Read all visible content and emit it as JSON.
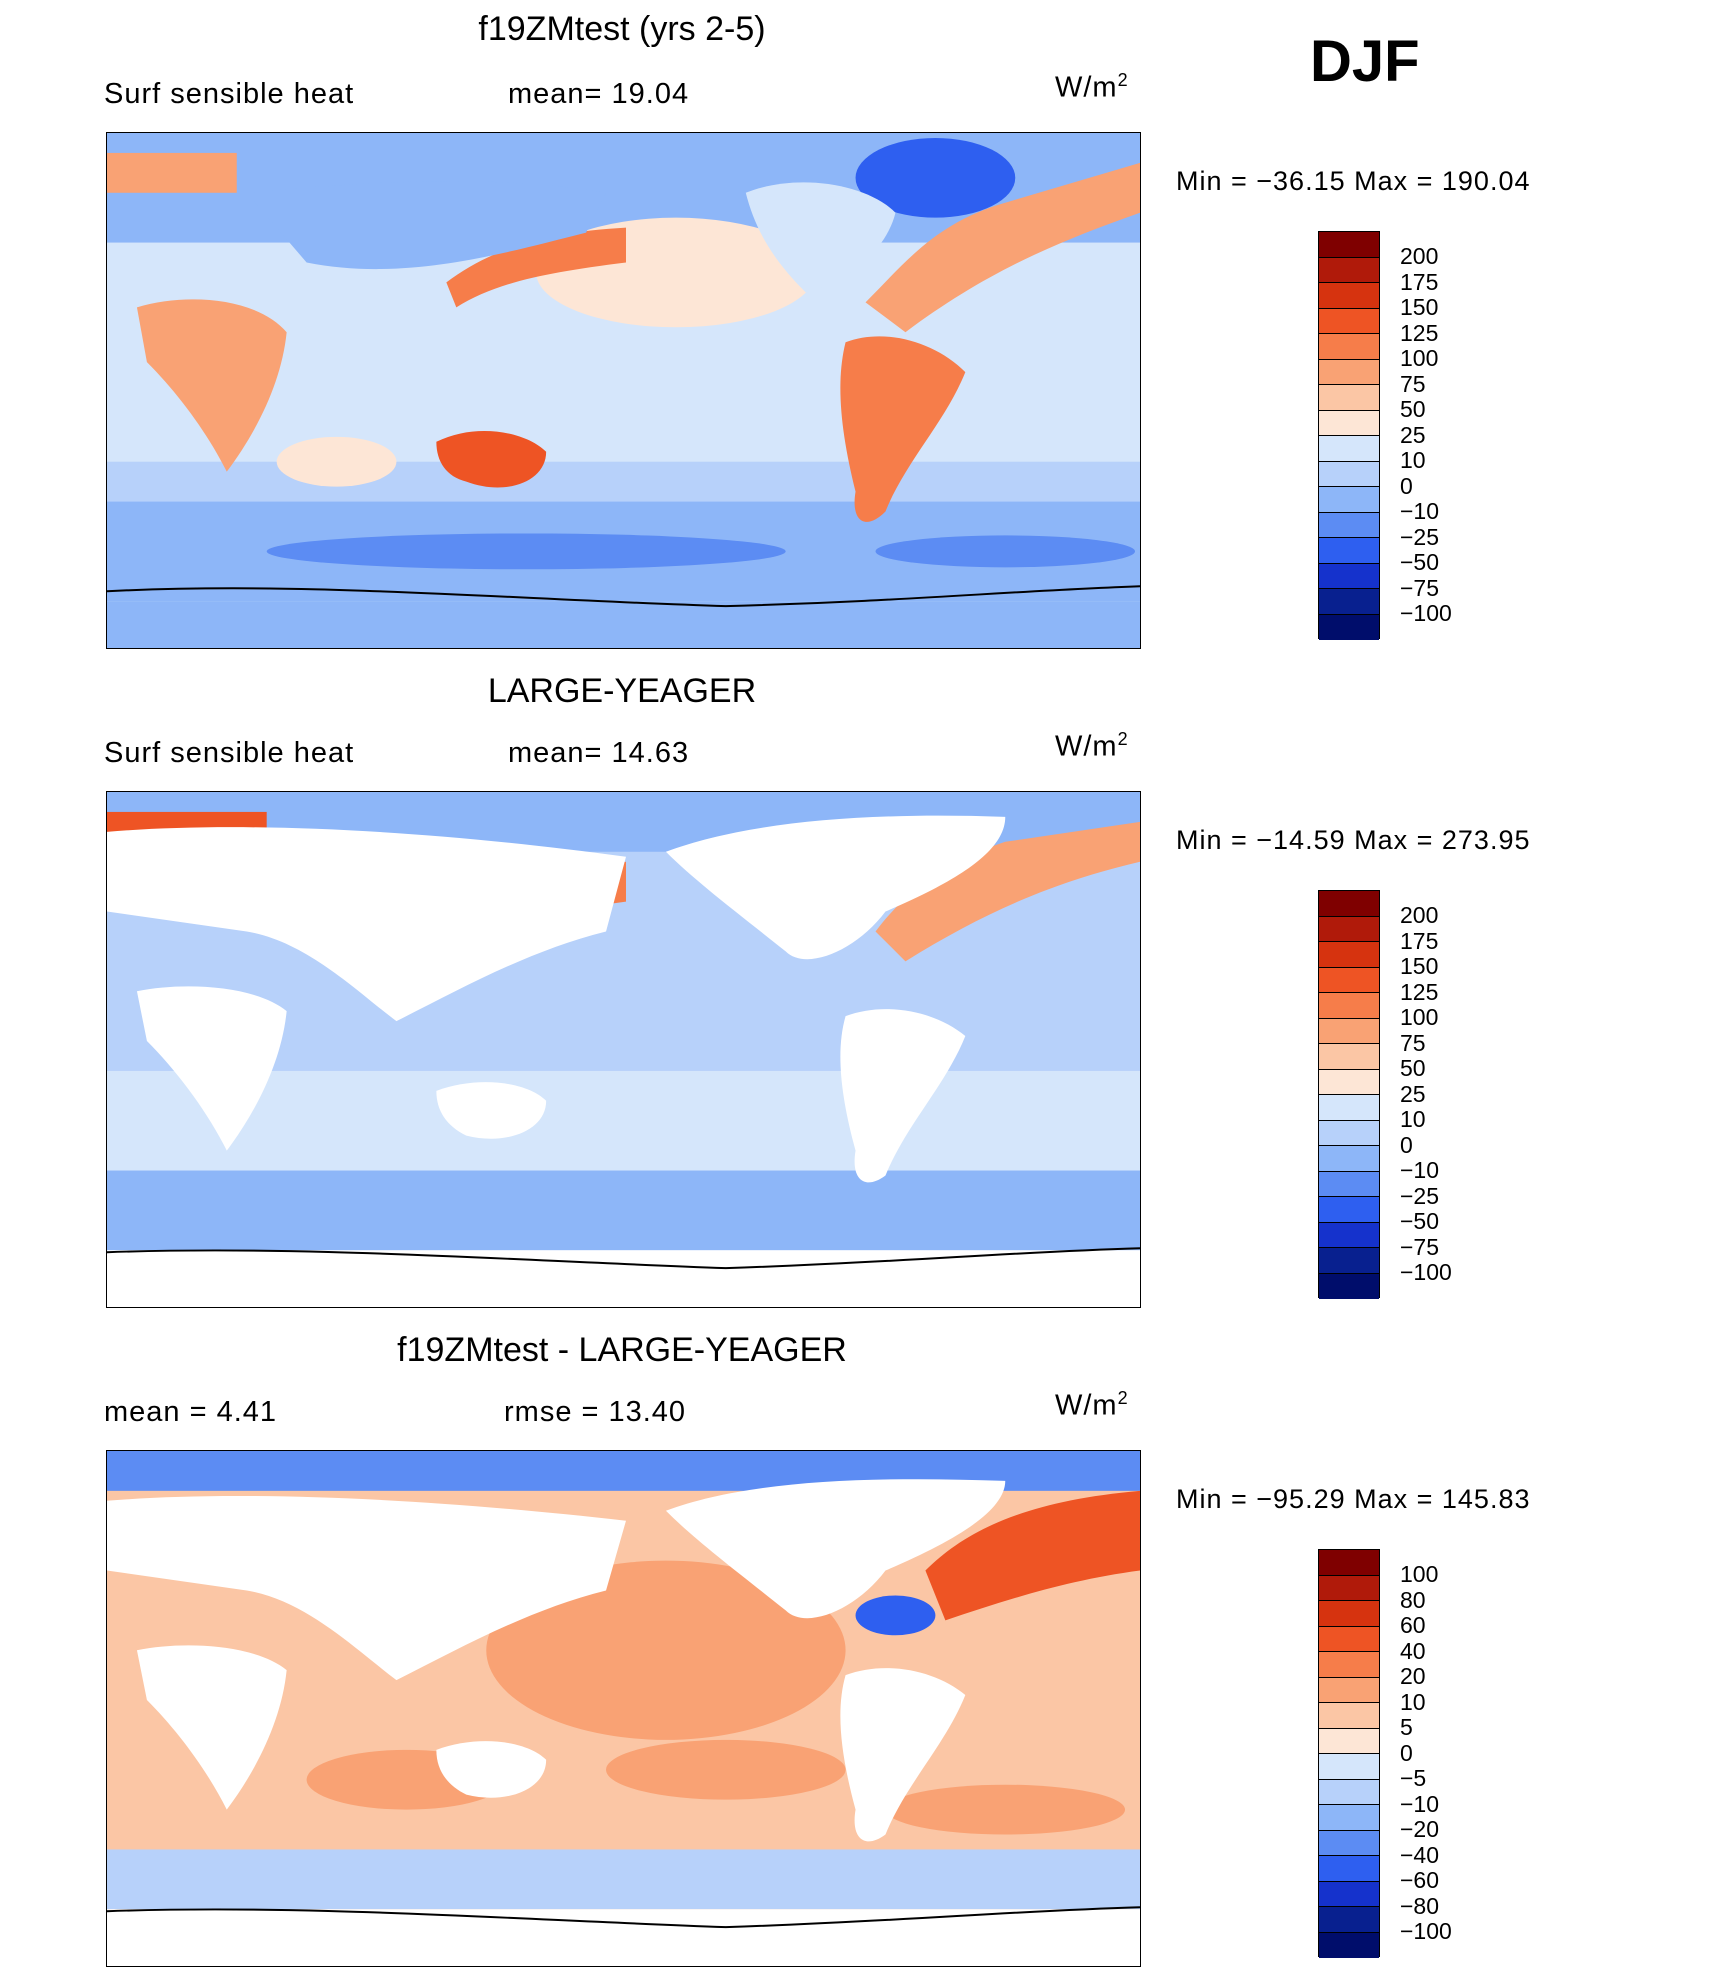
{
  "season": "DJF",
  "panels": [
    {
      "title": "f19ZMtest (yrs 2-5)",
      "left_label": "Surf  sensible  heat",
      "stat1": "mean=   19.04",
      "units_base": "W/m",
      "units_exp": "2",
      "minmax": "Min  =  −36.15  Max  =  190.04",
      "colorbar": [
        "200",
        "175",
        "150",
        "125",
        "100",
        "75",
        "50",
        "25",
        "10",
        "0",
        "−10",
        "−25",
        "−50",
        "−75",
        "−100"
      ],
      "colors": [
        "#7f0000",
        "#b01a0a",
        "#d6330f",
        "#ee5424",
        "#f67d4a",
        "#f9a274",
        "#fbc6a5",
        "#fde6d6",
        "#d5e6fb",
        "#b7d1fa",
        "#8db6f8",
        "#5c8cf3",
        "#2e5ff0",
        "#1532cc",
        "#08208f",
        "#000d6b"
      ]
    },
    {
      "title": "LARGE-YEAGER",
      "left_label": "Surf  sensible  heat",
      "stat1": "mean=   14.63",
      "units_base": "W/m",
      "units_exp": "2",
      "minmax": "Min  =  −14.59  Max  =  273.95",
      "colorbar": [
        "200",
        "175",
        "150",
        "125",
        "100",
        "75",
        "50",
        "25",
        "10",
        "0",
        "−10",
        "−25",
        "−50",
        "−75",
        "−100"
      ],
      "colors": [
        "#7f0000",
        "#b01a0a",
        "#d6330f",
        "#ee5424",
        "#f67d4a",
        "#f9a274",
        "#fbc6a5",
        "#fde6d6",
        "#d5e6fb",
        "#b7d1fa",
        "#8db6f8",
        "#5c8cf3",
        "#2e5ff0",
        "#1532cc",
        "#08208f",
        "#000d6b"
      ]
    },
    {
      "title": "f19ZMtest - LARGE-YEAGER",
      "left_label": "mean  =      4.41",
      "stat1": "rmse  =     13.40",
      "units_base": "W/m",
      "units_exp": "2",
      "minmax": "Min  =  −95.29  Max  =  145.83",
      "colorbar": [
        "100",
        "80",
        "60",
        "40",
        "20",
        "10",
        "5",
        "0",
        "−5",
        "−10",
        "−20",
        "−40",
        "−60",
        "−80",
        "−100"
      ],
      "colors": [
        "#7f0000",
        "#b01a0a",
        "#d6330f",
        "#ee5424",
        "#f67d4a",
        "#f9a274",
        "#fbc6a5",
        "#fde6d6",
        "#d5e6fb",
        "#b7d1fa",
        "#8db6f8",
        "#5c8cf3",
        "#2e5ff0",
        "#1532cc",
        "#08208f",
        "#000d6b"
      ]
    }
  ]
}
